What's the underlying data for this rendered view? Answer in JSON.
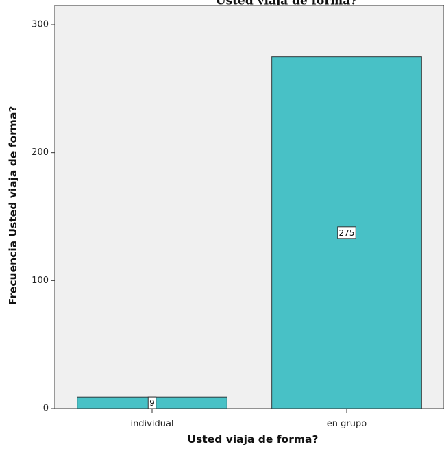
{
  "chart_data": {
    "type": "bar",
    "title": "Usted viaja de forma?",
    "xlabel": "Usted viaja de forma?",
    "ylabel": "Frecuencia Usted viaja de forma?",
    "categories": [
      "individual",
      "en grupo"
    ],
    "values": [
      9,
      275
    ],
    "data_labels": [
      "9",
      "275"
    ],
    "ylim": [
      0,
      315
    ],
    "yticks": [
      0,
      100,
      200,
      300
    ],
    "ytick_labels": [
      "0",
      "100",
      "200",
      "300"
    ],
    "grid": false,
    "legend": "none",
    "colors": {
      "bar_fill": "#48c1c6",
      "bar_stroke": "#2f3b3c",
      "plot_background": "#f0f0f0",
      "axis": "#333333"
    }
  }
}
